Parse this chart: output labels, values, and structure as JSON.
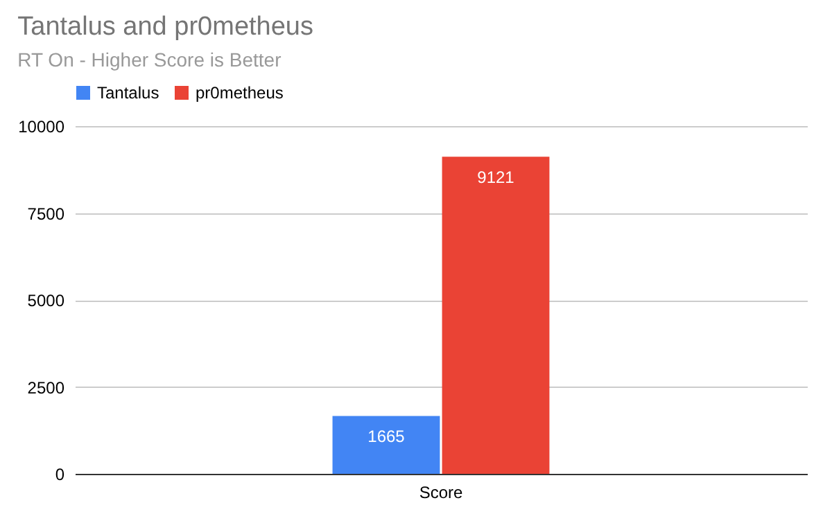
{
  "chart_data": {
    "type": "bar",
    "title": "Tantalus and pr0metheus",
    "subtitle": "RT On - Higher Score is Better",
    "categories": [
      "Score"
    ],
    "series": [
      {
        "name": "Tantalus",
        "color": "#4285f4",
        "values": [
          1665
        ]
      },
      {
        "name": "pr0metheus",
        "color": "#ea4335",
        "values": [
          9121
        ]
      }
    ],
    "ylim": [
      0,
      10000
    ],
    "yticks": [
      0,
      2500,
      5000,
      7500,
      10000
    ],
    "grid": "y",
    "legend": "top",
    "data_labels": true
  }
}
